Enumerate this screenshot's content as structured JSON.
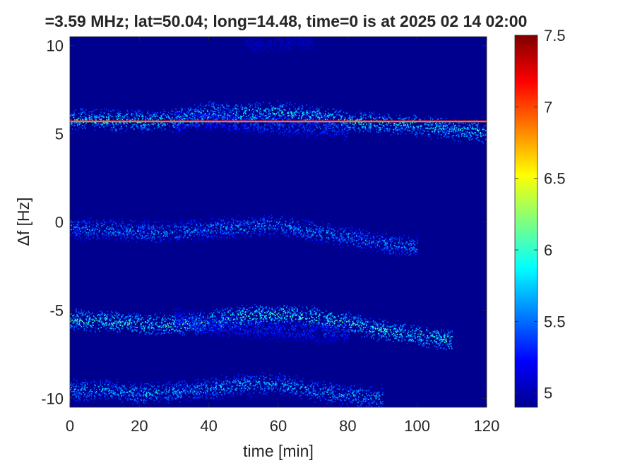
{
  "chart_data": {
    "type": "heatmap",
    "title": "=3.59 MHz;  lat=50.04; long=14.48, time=0 is at 2025 02 14 02:00",
    "xlabel": "time [min]",
    "ylabel": "Δf [Hz]",
    "xlim": [
      0,
      120
    ],
    "ylim": [
      -10.5,
      10.5
    ],
    "xticks": [
      0,
      20,
      40,
      60,
      80,
      100,
      120
    ],
    "yticks": [
      -10,
      -5,
      0,
      5,
      10
    ],
    "colorbar": {
      "colormap": "jet",
      "clim": [
        4.9,
        7.5
      ],
      "ticks": [
        5,
        5.5,
        6,
        6.5,
        7,
        7.5
      ]
    },
    "grid": false,
    "background_color": "#00008f",
    "carrier_line": {
      "freq_hz": 5.7,
      "x_range": [
        0,
        120
      ],
      "level": 6.8
    },
    "traces": [
      {
        "points": [
          [
            0,
            5.9
          ],
          [
            10,
            5.8
          ],
          [
            20,
            5.75
          ],
          [
            30,
            5.8
          ],
          [
            40,
            6.2
          ],
          [
            50,
            6.15
          ],
          [
            60,
            6.25
          ],
          [
            70,
            6.0
          ],
          [
            80,
            5.75
          ],
          [
            90,
            5.6
          ],
          [
            100,
            5.5
          ],
          [
            110,
            5.3
          ],
          [
            120,
            5.1
          ]
        ],
        "level": 6.0
      },
      {
        "points": [
          [
            30,
            5.6
          ],
          [
            40,
            5.8
          ],
          [
            50,
            5.6
          ],
          [
            60,
            5.45
          ],
          [
            70,
            5.4
          ],
          [
            80,
            5.3
          ]
        ],
        "level": 5.5
      },
      {
        "points": [
          [
            0,
            -0.3
          ],
          [
            10,
            -0.4
          ],
          [
            20,
            -0.5
          ],
          [
            30,
            -0.55
          ],
          [
            40,
            -0.35
          ],
          [
            50,
            -0.25
          ],
          [
            60,
            -0.1
          ],
          [
            70,
            -0.5
          ],
          [
            80,
            -0.8
          ],
          [
            90,
            -1.2
          ],
          [
            100,
            -1.4
          ]
        ],
        "level": 5.7
      },
      {
        "points": [
          [
            0,
            -5.5
          ],
          [
            10,
            -5.6
          ],
          [
            20,
            -5.75
          ],
          [
            30,
            -5.8
          ],
          [
            40,
            -5.6
          ],
          [
            50,
            -5.3
          ],
          [
            60,
            -5.2
          ],
          [
            70,
            -5.35
          ],
          [
            80,
            -5.7
          ],
          [
            90,
            -6.1
          ],
          [
            100,
            -6.4
          ],
          [
            110,
            -6.7
          ]
        ],
        "level": 6.1
      },
      {
        "points": [
          [
            30,
            -5.4
          ],
          [
            40,
            -5.9
          ],
          [
            50,
            -6.0
          ],
          [
            60,
            -6.1
          ],
          [
            70,
            -6.2
          ],
          [
            80,
            -6.3
          ]
        ],
        "level": 5.4
      },
      {
        "points": [
          [
            0,
            -9.5
          ],
          [
            10,
            -9.5
          ],
          [
            20,
            -9.7
          ],
          [
            30,
            -9.6
          ],
          [
            40,
            -9.4
          ],
          [
            50,
            -9.2
          ],
          [
            60,
            -9.1
          ],
          [
            70,
            -9.5
          ],
          [
            80,
            -9.8
          ],
          [
            90,
            -10.0
          ]
        ],
        "level": 5.8
      },
      {
        "points": [
          [
            50,
            10.2
          ],
          [
            60,
            10.3
          ],
          [
            70,
            10.35
          ]
        ],
        "level": 5.1
      }
    ]
  }
}
